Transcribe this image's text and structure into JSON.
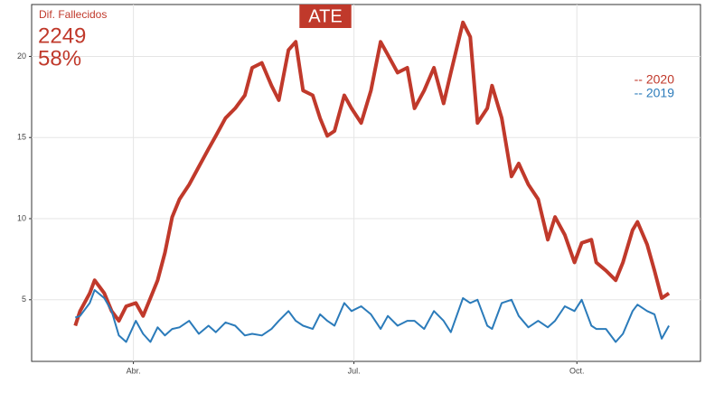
{
  "chart_data": {
    "type": "line",
    "title": "ATE",
    "annotation": {
      "label": "Dif. Fallecidos",
      "count": "2249",
      "percent": "58%"
    },
    "x": [
      68,
      70,
      74,
      76,
      80,
      83,
      86,
      89,
      93,
      96,
      99,
      102,
      105,
      108,
      111,
      115,
      119,
      123,
      126,
      130,
      134,
      138,
      141,
      145,
      149,
      152,
      156,
      159,
      162,
      166,
      169,
      172,
      175,
      179,
      182,
      186,
      190,
      194,
      197,
      201,
      205,
      208,
      212,
      216,
      220,
      223,
      228,
      231,
      234,
      238,
      240,
      244,
      248,
      251,
      255,
      259,
      263,
      266,
      270,
      274,
      277,
      281,
      283,
      287,
      291,
      294,
      298,
      300,
      304,
      307,
      310,
      313
    ],
    "series": [
      {
        "name": "-- 2020",
        "color": "#c0392b",
        "width": 4,
        "values": [
          3.4,
          4.3,
          5.4,
          6.2,
          5.4,
          4.3,
          3.7,
          4.6,
          4.8,
          4.0,
          5.1,
          6.2,
          7.9,
          10.1,
          11.2,
          12.1,
          13.2,
          14.3,
          15.1,
          16.2,
          16.8,
          17.6,
          19.3,
          19.6,
          18.2,
          17.3,
          20.4,
          20.9,
          17.9,
          17.6,
          16.2,
          15.1,
          15.4,
          17.6,
          16.8,
          15.9,
          17.9,
          20.9,
          20.1,
          19.0,
          19.3,
          16.8,
          17.9,
          19.3,
          17.1,
          19.0,
          22.1,
          21.2,
          15.9,
          16.8,
          18.2,
          16.2,
          12.6,
          13.4,
          12.1,
          11.2,
          8.7,
          10.1,
          9.0,
          7.3,
          8.5,
          8.7,
          7.3,
          6.8,
          6.2,
          7.3,
          9.3,
          9.8,
          8.4,
          6.8,
          5.1,
          5.4
        ]
      },
      {
        "name": "-- 2019",
        "color": "#2b7bba",
        "width": 2,
        "values": [
          3.9,
          4.0,
          4.8,
          5.6,
          5.1,
          4.3,
          2.8,
          2.4,
          3.7,
          2.9,
          2.4,
          3.3,
          2.8,
          3.2,
          3.3,
          3.7,
          2.9,
          3.4,
          3.0,
          3.6,
          3.4,
          2.8,
          2.9,
          2.8,
          3.2,
          3.7,
          4.3,
          3.7,
          3.4,
          3.2,
          4.1,
          3.7,
          3.4,
          4.8,
          4.3,
          4.6,
          4.1,
          3.2,
          4.0,
          3.4,
          3.7,
          3.7,
          3.2,
          4.3,
          3.7,
          3.0,
          5.1,
          4.8,
          5.0,
          3.4,
          3.2,
          4.8,
          5.0,
          4.0,
          3.3,
          3.7,
          3.3,
          3.7,
          4.6,
          4.3,
          5.0,
          3.4,
          3.2,
          3.2,
          2.4,
          2.9,
          4.3,
          4.7,
          4.3,
          4.1,
          2.6,
          3.4
        ]
      }
    ],
    "xlim": [
      50,
      326
    ],
    "xticks": [
      {
        "value": 92,
        "label": "Abr."
      },
      {
        "value": 183,
        "label": "Jul."
      },
      {
        "value": 275,
        "label": "Oct."
      }
    ],
    "ylim": [
      1.2,
      23.2
    ],
    "yticks": [
      5,
      10,
      15,
      20
    ],
    "grid": true
  }
}
